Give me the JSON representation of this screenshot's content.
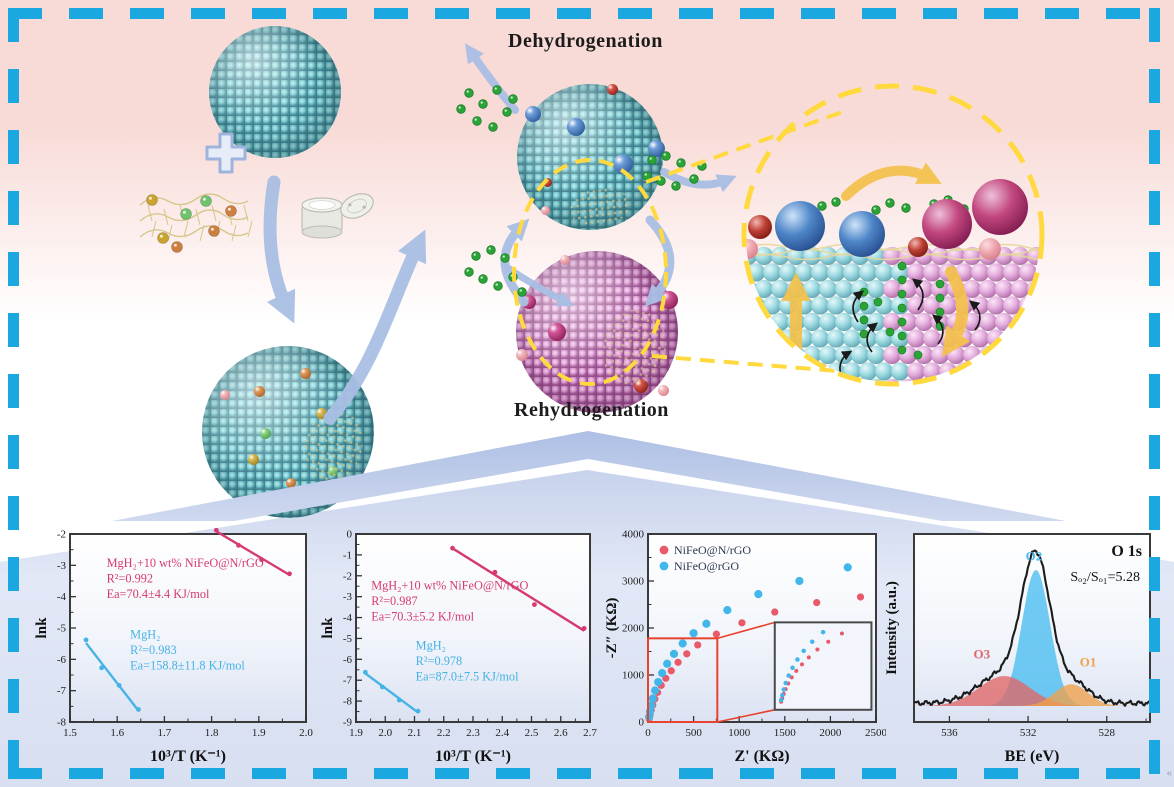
{
  "figure": {
    "scheme": {
      "dehydrogenation_label": "Dehydrogenation",
      "rehydrogenation_label": "Rehydrogenation"
    },
    "accents": {
      "border_dash": "#1ba7e0",
      "highlight_dash": "#ffd93e",
      "process_arrow": "#a9bfe4",
      "mg_sphere": "#7ecdd3",
      "mgh2_sphere": "#dd9ad4",
      "h2_molecule": "#2ba437"
    },
    "corner_mark": "«"
  },
  "chart_data": [
    {
      "id": "arrhenius_dehydrogenation",
      "type": "line",
      "xlabel": "10³/T (K⁻¹)",
      "ylabel": "lnk",
      "xlim": [
        1.5,
        2.0
      ],
      "ylim": [
        -8,
        -2
      ],
      "xticks": [
        1.5,
        1.6,
        1.7,
        1.8,
        1.9,
        2.0
      ],
      "yticks": [
        -8,
        -7,
        -6,
        -5,
        -4,
        -3,
        -2
      ],
      "xtick_dec": 1,
      "series": [
        {
          "name": "MgH₂+10 wt% NiFeO@N/rGO",
          "color": "#d63a72",
          "x": [
            1.81,
            1.857,
            1.906,
            1.965
          ],
          "y": [
            -1.88,
            -2.36,
            -2.82,
            -3.27
          ]
        },
        {
          "name": "MgH₂",
          "color": "#45b3e6",
          "x": [
            1.534,
            1.567,
            1.604,
            1.645
          ],
          "y": [
            -5.38,
            -6.27,
            -6.83,
            -7.6
          ]
        }
      ],
      "annotations": [
        {
          "lines": [
            "MgH₂+10 wt% NiFeO@N/rGO",
            "R²=0.992",
            "Ea=70.4±4.4 KJ/mol"
          ],
          "color": "#d63a72",
          "fx": 0.155,
          "fy": 0.175
        },
        {
          "lines": [
            "MgH₂",
            "R²=0.983",
            "Ea=158.8±11.8 KJ/mol"
          ],
          "color": "#45b3e6",
          "fx": 0.255,
          "fy": 0.555
        }
      ]
    },
    {
      "id": "arrhenius_rehydrogenation",
      "type": "line",
      "xlabel": "10³/T (K⁻¹)",
      "ylabel": "lnk",
      "xlim": [
        1.9,
        2.7
      ],
      "ylim": [
        -9,
        0
      ],
      "xticks": [
        1.9,
        2.0,
        2.1,
        2.2,
        2.3,
        2.4,
        2.5,
        2.6,
        2.7
      ],
      "yticks": [
        -9,
        -8,
        -7,
        -6,
        -5,
        -4,
        -3,
        -2,
        -1,
        0
      ],
      "xtick_dec": 1,
      "series": [
        {
          "name": "MgH₂+10 wt% NiFeO@N/rGO",
          "color": "#d63a72",
          "x": [
            2.23,
            2.375,
            2.51,
            2.68
          ],
          "y": [
            -0.68,
            -1.83,
            -3.38,
            -4.52
          ]
        },
        {
          "name": "MgH₂",
          "color": "#45b3e6",
          "x": [
            1.932,
            1.99,
            2.048,
            2.112
          ],
          "y": [
            -6.62,
            -7.32,
            -7.95,
            -8.48
          ]
        }
      ],
      "annotations": [
        {
          "lines": [
            "MgH₂+10 wt% NiFeO@N/rGO",
            "R²=0.987",
            "Ea=70.3±5.2 KJ/mol"
          ],
          "color": "#d63a72",
          "fx": 0.065,
          "fy": 0.295
        },
        {
          "lines": [
            "MgH₂",
            "R²=0.978",
            "Ea=87.0±7.5 KJ/mol"
          ],
          "color": "#45b3e6",
          "fx": 0.255,
          "fy": 0.615
        }
      ]
    },
    {
      "id": "eis_nyquist",
      "type": "scatter",
      "xlabel": "Z' (KΩ)",
      "ylabel": "-Z″ (KΩ)",
      "xlim": [
        0,
        2500
      ],
      "ylim": [
        0,
        4000
      ],
      "xticks": [
        0,
        500,
        1000,
        1500,
        2000,
        2500
      ],
      "yticks": [
        0,
        1000,
        2000,
        3000,
        4000
      ],
      "xtick_dec": 0,
      "legend_position": "top-left",
      "series": [
        {
          "name": "NiFeO@N/rGO",
          "color": "#e8596a",
          "marker_r": 3.6,
          "x": [
            12,
            22,
            35,
            52,
            75,
            105,
            145,
            195,
            255,
            330,
            425,
            545,
            750,
            1030,
            1390,
            1850,
            2330
          ],
          "y": [
            70,
            150,
            250,
            360,
            490,
            630,
            780,
            930,
            1090,
            1270,
            1450,
            1640,
            1870,
            2110,
            2340,
            2540,
            2660
          ]
        },
        {
          "name": "NiFeO@rGO",
          "color": "#41b6ea",
          "marker_r": 4.1,
          "x": [
            12,
            22,
            35,
            52,
            78,
            112,
            155,
            210,
            285,
            380,
            500,
            640,
            870,
            1210,
            1660,
            2190
          ],
          "y": [
            110,
            220,
            350,
            500,
            670,
            850,
            1040,
            1240,
            1450,
            1670,
            1890,
            2090,
            2380,
            2720,
            3000,
            3290
          ]
        }
      ],
      "zoom_rect": {
        "x": [
          0,
          760
        ],
        "y": [
          0,
          1780
        ],
        "color": "#e8432e"
      },
      "inset": {
        "x": [
          1390,
          2450
        ],
        "y": [
          260,
          2120
        ]
      }
    },
    {
      "id": "xps_o1s",
      "type": "area",
      "title": "O 1s",
      "annotation": "Sₒ₂/Sₒ₁=5.28",
      "xlabel": "BE (eV)",
      "ylabel": "Intensity (a.u.)",
      "xlim": [
        537.8,
        525.8
      ],
      "xticks": [
        536,
        532,
        528
      ],
      "xticks_minor": [
        534,
        530,
        526
      ],
      "peaks": [
        {
          "name": "O2",
          "color": "#49bdf0",
          "center": 531.6,
          "sigma": 0.72,
          "amp": 1.0
        },
        {
          "name": "O3",
          "color": "#e06767",
          "center": 533.2,
          "sigma": 1.3,
          "amp": 0.22
        },
        {
          "name": "O1",
          "color": "#f0a04a",
          "center": 529.8,
          "sigma": 0.85,
          "amp": 0.16
        }
      ],
      "envelope_color": "#1c1c1c"
    }
  ]
}
